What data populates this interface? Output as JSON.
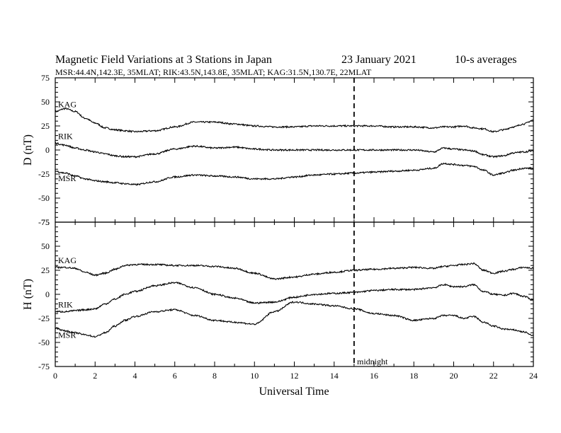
{
  "figure": {
    "title": "Magnetic Field Variations at 3 Stations in Japan",
    "date": "23 January 2021",
    "averaging": "10-s averages",
    "stations_line": "MSR:44.4N,142.3E, 35MLAT;  RIK:43.5N,143.8E, 35MLAT;  KAG:31.5N,130.7E, 22MLAT",
    "xlabel": "Universal Time",
    "midnight_label": "midnight",
    "x_ticks": [
      "0",
      "2",
      "4",
      "6",
      "8",
      "10",
      "12",
      "14",
      "16",
      "18",
      "20",
      "22",
      "24"
    ],
    "colors": {
      "line": "#000000",
      "background": "#ffffff"
    }
  },
  "chart_data": [
    {
      "type": "line",
      "ylabel": "D (nT)",
      "xlim": [
        0,
        24
      ],
      "ylim": [
        -75,
        75
      ],
      "y_ticks": [
        "75",
        "50",
        "25",
        "0",
        "-25",
        "-50",
        "-75"
      ],
      "grid": false,
      "marker_line_x": 15,
      "series": [
        {
          "name": "KAG",
          "x": [
            0,
            0.5,
            1,
            1.5,
            2,
            2.5,
            3,
            3.5,
            4,
            5,
            6,
            7,
            8,
            9,
            10,
            11,
            12,
            13,
            14,
            15,
            16,
            17,
            18,
            19,
            19.5,
            20,
            20.5,
            21,
            21.5,
            22,
            22.5,
            23,
            23.5,
            24
          ],
          "y": [
            40,
            43,
            40,
            33,
            28,
            23,
            21,
            20,
            19,
            20,
            24,
            29,
            29,
            27,
            25,
            24,
            24,
            25,
            25,
            25,
            25,
            24,
            24,
            23,
            24,
            24,
            25,
            23,
            22,
            19,
            21,
            24,
            27,
            31
          ]
        },
        {
          "name": "RIK",
          "x": [
            0,
            0.5,
            1,
            1.5,
            2,
            2.5,
            3,
            3.5,
            4,
            5,
            6,
            7,
            8,
            9,
            10,
            11,
            12,
            13,
            14,
            15,
            16,
            17,
            18,
            19,
            19.5,
            20,
            20.5,
            21,
            21.5,
            22,
            22.5,
            23,
            23.5,
            24
          ],
          "y": [
            7,
            5,
            2,
            0,
            -2,
            -4,
            -6,
            -7,
            -7,
            -4,
            1,
            4,
            2,
            3,
            1,
            0,
            0,
            0,
            0,
            0,
            0,
            0,
            0,
            -2,
            2,
            1,
            0,
            -1,
            -5,
            -7,
            -6,
            -3,
            -2,
            -1
          ]
        },
        {
          "name": "MSR",
          "x": [
            0,
            0.5,
            1,
            1.5,
            2,
            2.5,
            3,
            3.5,
            4,
            5,
            6,
            7,
            8,
            9,
            10,
            11,
            12,
            13,
            14,
            15,
            16,
            17,
            18,
            19,
            19.5,
            20,
            20.5,
            21,
            21.5,
            22,
            22.5,
            23,
            23.5,
            24
          ],
          "y": [
            -22,
            -24,
            -27,
            -30,
            -32,
            -33,
            -34,
            -35,
            -36,
            -33,
            -28,
            -26,
            -27,
            -28,
            -30,
            -30,
            -28,
            -26,
            -25,
            -24,
            -23,
            -22,
            -21,
            -19,
            -14,
            -15,
            -16,
            -17,
            -21,
            -26,
            -24,
            -21,
            -19,
            -19
          ]
        }
      ]
    },
    {
      "type": "line",
      "ylabel": "H (nT)",
      "xlim": [
        0,
        24
      ],
      "ylim": [
        -75,
        75
      ],
      "y_ticks": [
        "75",
        "50",
        "25",
        "0",
        "-25",
        "-50",
        "-75"
      ],
      "grid": false,
      "marker_line_x": 15,
      "series": [
        {
          "name": "KAG",
          "x": [
            0,
            0.5,
            1,
            1.5,
            2,
            2.5,
            3,
            3.5,
            4,
            5,
            6,
            7,
            8,
            9,
            10,
            11,
            12,
            13,
            14,
            15,
            16,
            17,
            18,
            19,
            19.5,
            20,
            20.5,
            21,
            21.5,
            22,
            22.5,
            23,
            23.5,
            24
          ],
          "y": [
            28,
            28,
            27,
            23,
            20,
            22,
            26,
            30,
            31,
            31,
            30,
            30,
            29,
            27,
            22,
            16,
            18,
            21,
            23,
            25,
            26,
            27,
            28,
            27,
            29,
            30,
            31,
            32,
            25,
            22,
            24,
            26,
            28,
            27
          ]
        },
        {
          "name": "RIK",
          "x": [
            0,
            0.5,
            1,
            1.5,
            2,
            2.5,
            3,
            3.5,
            4,
            5,
            6,
            7,
            8,
            9,
            10,
            11,
            12,
            13,
            14,
            15,
            16,
            17,
            18,
            19,
            19.5,
            20,
            20.5,
            21,
            21.5,
            22,
            22.5,
            23,
            23.5,
            24
          ],
          "y": [
            -18,
            -18,
            -17,
            -16,
            -15,
            -10,
            -5,
            0,
            3,
            9,
            12,
            7,
            0,
            -4,
            -9,
            -8,
            -3,
            0,
            1,
            2,
            4,
            5,
            5,
            7,
            10,
            8,
            8,
            10,
            3,
            0,
            -1,
            1,
            -2,
            -6
          ]
        },
        {
          "name": "MSR",
          "x": [
            0,
            0.5,
            1,
            1.5,
            2,
            2.5,
            3,
            3.5,
            4,
            5,
            6,
            7,
            8,
            9,
            10,
            11,
            12,
            13,
            14,
            15,
            16,
            17,
            18,
            19,
            19.5,
            20,
            20.5,
            21,
            21.5,
            22,
            22.5,
            23,
            23.5,
            24
          ],
          "y": [
            -35,
            -38,
            -40,
            -42,
            -44,
            -40,
            -33,
            -27,
            -23,
            -18,
            -16,
            -22,
            -27,
            -29,
            -31,
            -18,
            -8,
            -10,
            -12,
            -15,
            -20,
            -22,
            -27,
            -25,
            -22,
            -22,
            -25,
            -23,
            -29,
            -33,
            -36,
            -37,
            -39,
            -43
          ]
        }
      ]
    }
  ]
}
